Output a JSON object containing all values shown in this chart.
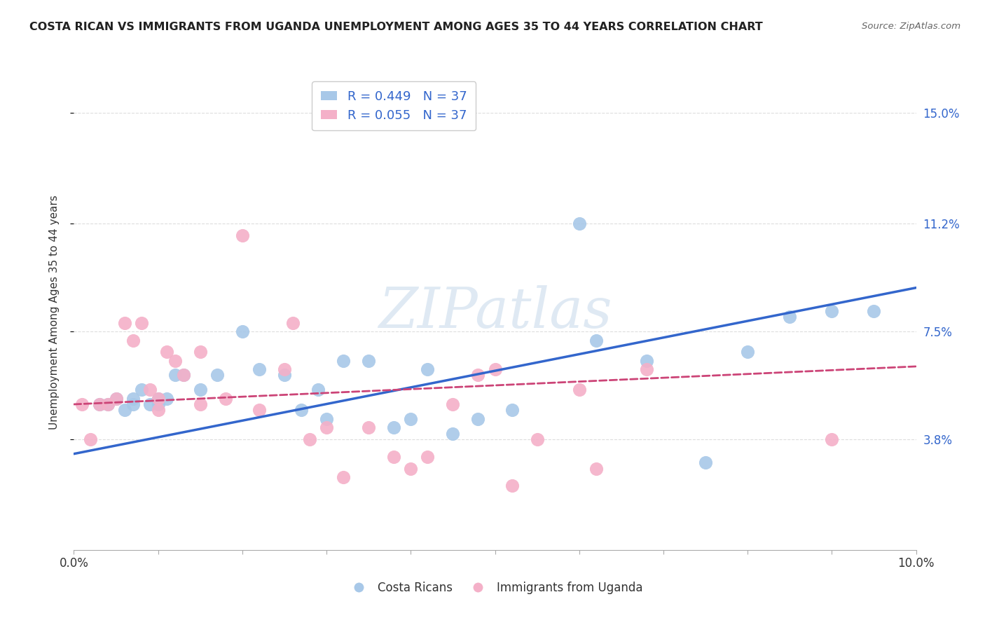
{
  "title": "COSTA RICAN VS IMMIGRANTS FROM UGANDA UNEMPLOYMENT AMONG AGES 35 TO 44 YEARS CORRELATION CHART",
  "source": "Source: ZipAtlas.com",
  "ylabel": "Unemployment Among Ages 35 to 44 years",
  "ytick_labels": [
    "3.8%",
    "7.5%",
    "11.2%",
    "15.0%"
  ],
  "ytick_values": [
    0.038,
    0.075,
    0.112,
    0.15
  ],
  "xmin": 0.0,
  "xmax": 0.1,
  "ymin": 0.0,
  "ymax": 0.163,
  "legend1_R": "0.449",
  "legend1_N": "37",
  "legend2_R": "0.055",
  "legend2_N": "37",
  "blue_color": "#a8c8e8",
  "pink_color": "#f4b0c8",
  "blue_line_color": "#3366cc",
  "pink_line_color": "#cc4477",
  "legend_text_color": "#3366cc",
  "right_label_color": "#3366cc",
  "watermark": "ZIPatlas",
  "blue_scatter_x": [
    0.003,
    0.004,
    0.005,
    0.006,
    0.007,
    0.007,
    0.008,
    0.009,
    0.01,
    0.01,
    0.011,
    0.012,
    0.013,
    0.015,
    0.017,
    0.02,
    0.022,
    0.025,
    0.027,
    0.029,
    0.03,
    0.032,
    0.035,
    0.038,
    0.04,
    0.042,
    0.045,
    0.048,
    0.052,
    0.06,
    0.062,
    0.068,
    0.075,
    0.08,
    0.085,
    0.09,
    0.095
  ],
  "blue_scatter_y": [
    0.05,
    0.05,
    0.052,
    0.048,
    0.05,
    0.052,
    0.055,
    0.05,
    0.05,
    0.052,
    0.052,
    0.06,
    0.06,
    0.055,
    0.06,
    0.075,
    0.062,
    0.06,
    0.048,
    0.055,
    0.045,
    0.065,
    0.065,
    0.042,
    0.045,
    0.062,
    0.04,
    0.045,
    0.048,
    0.112,
    0.072,
    0.065,
    0.03,
    0.068,
    0.08,
    0.082,
    0.082
  ],
  "pink_scatter_x": [
    0.001,
    0.002,
    0.003,
    0.004,
    0.005,
    0.006,
    0.007,
    0.008,
    0.009,
    0.01,
    0.01,
    0.011,
    0.012,
    0.013,
    0.015,
    0.015,
    0.018,
    0.02,
    0.022,
    0.025,
    0.026,
    0.028,
    0.03,
    0.032,
    0.035,
    0.038,
    0.04,
    0.042,
    0.045,
    0.048,
    0.05,
    0.052,
    0.055,
    0.06,
    0.062,
    0.068,
    0.09
  ],
  "pink_scatter_y": [
    0.05,
    0.038,
    0.05,
    0.05,
    0.052,
    0.078,
    0.072,
    0.078,
    0.055,
    0.048,
    0.052,
    0.068,
    0.065,
    0.06,
    0.05,
    0.068,
    0.052,
    0.108,
    0.048,
    0.062,
    0.078,
    0.038,
    0.042,
    0.025,
    0.042,
    0.032,
    0.028,
    0.032,
    0.05,
    0.06,
    0.062,
    0.022,
    0.038,
    0.055,
    0.028,
    0.062,
    0.038
  ],
  "blue_line_y0": 0.033,
  "blue_line_y1": 0.09,
  "pink_line_y0": 0.05,
  "pink_line_y1": 0.063,
  "grid_color": "#dddddd",
  "spine_color": "#aaaaaa"
}
